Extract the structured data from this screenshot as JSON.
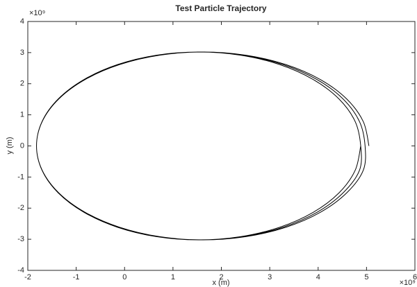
{
  "chart_data": {
    "type": "line",
    "title": "Test Particle Trajectory",
    "x_label": "x (m)",
    "y_label": "y (m)",
    "x_exponent_label": "×10⁹",
    "y_exponent_label": "×10⁹",
    "xlim": [
      -2,
      6
    ],
    "ylim": [
      -4,
      4
    ],
    "xticks": [
      -2,
      -1,
      0,
      1,
      2,
      3,
      4,
      5,
      6
    ],
    "yticks": [
      -4,
      -3,
      -2,
      -1,
      0,
      1,
      2,
      3,
      4
    ],
    "grid": false,
    "series": [
      {
        "color": "#000000",
        "x": [
          5.05,
          4.933,
          4.59,
          4.044,
          3.333,
          2.505,
          1.615,
          0.725,
          -0.103,
          -0.814,
          -1.36,
          -1.703,
          -1.82,
          -1.703,
          -1.36,
          -0.814,
          -0.103,
          0.725,
          1.615,
          2.505,
          3.333,
          4.044,
          4.59,
          4.933,
          4.97,
          4.855,
          4.515,
          3.975,
          3.273,
          2.454,
          1.575,
          0.696,
          -0.123,
          -0.825,
          -1.365,
          -1.705,
          -1.82,
          -1.705,
          -1.365,
          -0.825,
          -0.123,
          0.696,
          1.575,
          2.454,
          3.273,
          3.975,
          4.515,
          4.855,
          4.88,
          4.766,
          4.431,
          3.898,
          3.205,
          2.398,
          1.53,
          0.662,
          -0.145,
          -0.838,
          -1.371,
          -1.706,
          -1.82,
          -1.706,
          -1.371,
          -0.838,
          -0.145,
          0.662,
          1.53,
          2.398,
          3.205,
          3.898,
          4.431,
          4.766,
          4.88
        ],
        "values": [
          0,
          0.782,
          1.51,
          2.135,
          2.615,
          2.917,
          3.02,
          2.917,
          2.615,
          2.135,
          1.51,
          0.782,
          0,
          -0.782,
          -1.51,
          -2.135,
          -2.615,
          -2.917,
          -3.02,
          -2.917,
          -2.615,
          -2.135,
          -1.51,
          -0.782,
          0,
          0.782,
          1.51,
          2.135,
          2.615,
          2.917,
          3.02,
          2.917,
          2.615,
          2.135,
          1.51,
          0.782,
          0,
          -0.782,
          -1.51,
          -2.135,
          -2.615,
          -2.917,
          -3.02,
          -2.917,
          -2.615,
          -2.135,
          -1.51,
          -0.782,
          0,
          0.782,
          1.51,
          2.135,
          2.615,
          2.917,
          3.02,
          2.917,
          2.615,
          2.135,
          1.51,
          0.782,
          0,
          -0.782,
          -1.51,
          -2.135,
          -2.615,
          -2.917,
          -3.02,
          -2.917,
          -2.615,
          -2.135,
          -1.51,
          -0.782,
          0
        ]
      }
    ]
  }
}
